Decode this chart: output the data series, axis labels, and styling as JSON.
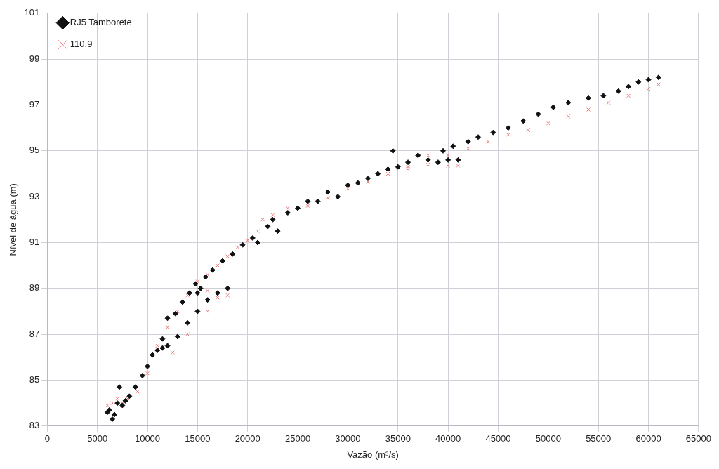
{
  "chart_data": {
    "type": "scatter",
    "xlabel": "Vazão (m³/s)",
    "ylabel": "Nível de água (m)",
    "xlim": [
      0,
      65000
    ],
    "xticks": [
      0,
      5000,
      10000,
      15000,
      20000,
      25000,
      30000,
      35000,
      40000,
      45000,
      50000,
      55000,
      60000,
      65000
    ],
    "ylim": [
      83,
      101
    ],
    "yticks": [
      83,
      85,
      87,
      89,
      91,
      93,
      95,
      97,
      99,
      101
    ],
    "grid": true,
    "legend": "top left",
    "series": [
      {
        "name": "RJ5 Tamborete",
        "color": "#111111",
        "marker": "diamond",
        "x": [
          6000,
          6200,
          6500,
          6700,
          7000,
          7200,
          7500,
          7800,
          8200,
          8800,
          9500,
          10000,
          10500,
          11000,
          11500,
          12000,
          12000,
          11500,
          12800,
          13500,
          14200,
          14800,
          15000,
          15300,
          15800,
          16500,
          17500,
          18500,
          19500,
          20500,
          13000,
          14000,
          15000,
          16000,
          17000,
          18000,
          21000,
          22000,
          22500,
          23000,
          24000,
          25000,
          26000,
          27000,
          28000,
          29000,
          30000,
          31000,
          32000,
          33000,
          34000,
          34500,
          35000,
          36000,
          37000,
          38000,
          39000,
          40000,
          41000,
          39500,
          40500,
          42000,
          43000,
          44500,
          46000,
          47500,
          49000,
          50500,
          52000,
          54000,
          55500,
          57000,
          58000,
          59000,
          60000,
          61000
        ],
        "values": [
          83.6,
          83.7,
          83.3,
          83.5,
          84.0,
          84.7,
          83.9,
          84.1,
          84.3,
          84.7,
          85.2,
          85.6,
          86.1,
          86.3,
          86.4,
          86.5,
          87.7,
          86.8,
          87.9,
          88.4,
          88.8,
          89.2,
          88.8,
          89.0,
          89.5,
          89.8,
          90.2,
          90.5,
          90.9,
          91.2,
          86.9,
          87.5,
          88.0,
          88.5,
          88.8,
          89.0,
          91.0,
          91.7,
          92.0,
          91.5,
          92.3,
          92.5,
          92.8,
          92.8,
          93.2,
          93.0,
          93.5,
          93.6,
          93.8,
          94.0,
          94.2,
          95.0,
          94.3,
          94.5,
          94.8,
          94.6,
          94.5,
          94.6,
          94.6,
          95.0,
          95.2,
          95.4,
          95.6,
          95.8,
          96.0,
          96.3,
          96.6,
          96.9,
          97.1,
          97.3,
          97.4,
          97.6,
          97.8,
          98.0,
          98.1,
          98.2
        ]
      },
      {
        "name": "110.9",
        "color": "#f07878",
        "marker": "cross",
        "x": [
          6000,
          6500,
          7000,
          7500,
          8000,
          9000,
          10000,
          11000,
          12000,
          13000,
          14000,
          15000,
          16000,
          17000,
          18000,
          12500,
          14000,
          16000,
          16000,
          17000,
          18000,
          19000,
          20000,
          21000,
          21500,
          22500,
          24000,
          26000,
          28000,
          30000,
          32000,
          34000,
          36000,
          38000,
          40000,
          41000,
          36000,
          38000,
          40000,
          42000,
          44000,
          46000,
          48000,
          50000,
          52000,
          54000,
          56000,
          58000,
          60000,
          61000
        ],
        "values": [
          83.9,
          84.0,
          84.2,
          84.0,
          84.2,
          84.5,
          85.3,
          86.5,
          87.3,
          88.0,
          88.7,
          89.3,
          88.9,
          88.6,
          88.7,
          86.2,
          87.0,
          88.0,
          89.6,
          90.0,
          90.4,
          90.8,
          91.1,
          91.5,
          92.0,
          92.2,
          92.5,
          92.6,
          92.95,
          93.35,
          93.65,
          94.0,
          94.2,
          94.4,
          94.35,
          94.35,
          94.3,
          94.8,
          94.8,
          95.1,
          95.4,
          95.7,
          95.9,
          96.2,
          96.5,
          96.8,
          97.1,
          97.4,
          97.7,
          97.9
        ]
      }
    ]
  }
}
